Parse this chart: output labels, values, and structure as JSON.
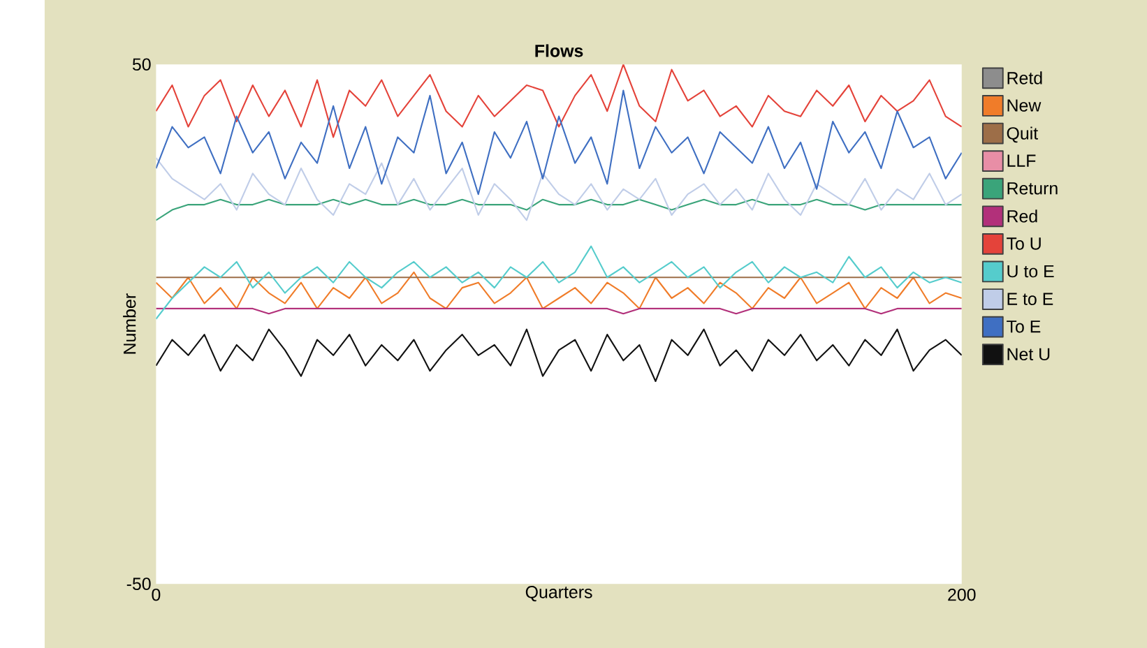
{
  "chart_data": {
    "type": "line",
    "title": "Flows",
    "xlabel": "Quarters",
    "ylabel": "Number",
    "xlim": [
      0,
      200
    ],
    "xticks": [
      0,
      200
    ],
    "ylim": [
      -50,
      50
    ],
    "yticks": [
      -50,
      50
    ],
    "legend": "right",
    "marker": "none",
    "line_style": "solid",
    "x": [
      0,
      4,
      8,
      12,
      16,
      20,
      24,
      28,
      32,
      36,
      40,
      44,
      48,
      52,
      56,
      60,
      64,
      68,
      72,
      76,
      80,
      84,
      88,
      92,
      96,
      100,
      104,
      108,
      112,
      116,
      120,
      124,
      128,
      132,
      136,
      140,
      144,
      148,
      152,
      156,
      160,
      164,
      168,
      172,
      176,
      180,
      184,
      188,
      192,
      196,
      200
    ],
    "series": [
      {
        "name": "Retd",
        "color": "#8d8d8d",
        "values": [
          null,
          null,
          null,
          null,
          null,
          null,
          null,
          null,
          null,
          null,
          null,
          null,
          null,
          null,
          null,
          null,
          null,
          null,
          null,
          null,
          null,
          null,
          null,
          null,
          null,
          null,
          null,
          null,
          null,
          null,
          null,
          null,
          null,
          null,
          null,
          null,
          null,
          null,
          null,
          null,
          null,
          null,
          null,
          null,
          null,
          null,
          null,
          null,
          null,
          null,
          null
        ]
      },
      {
        "name": "New",
        "color": "#f07c29",
        "values": [
          8,
          5,
          9,
          4,
          7,
          3,
          9,
          6,
          4,
          8,
          3,
          7,
          5,
          9,
          4,
          6,
          10,
          5,
          3,
          7,
          8,
          4,
          6,
          9,
          3,
          5,
          7,
          4,
          8,
          6,
          3,
          9,
          5,
          7,
          4,
          8,
          6,
          3,
          7,
          5,
          9,
          4,
          6,
          8,
          3,
          7,
          5,
          9,
          4,
          6,
          5
        ]
      },
      {
        "name": "Quit",
        "color": "#9d6e48",
        "values": [
          9,
          9,
          9,
          9,
          9,
          9,
          9,
          9,
          9,
          9,
          9,
          9,
          9,
          9,
          9,
          9,
          9,
          9,
          9,
          9,
          9,
          9,
          9,
          9,
          9,
          9,
          9,
          9,
          9,
          9,
          9,
          9,
          9,
          9,
          9,
          9,
          9,
          9,
          9,
          9,
          9,
          9,
          9,
          9,
          9,
          9,
          9,
          9,
          9,
          9,
          9
        ]
      },
      {
        "name": "LLF",
        "color": "#e88ea6",
        "values": [
          null,
          null,
          null,
          null,
          null,
          null,
          null,
          null,
          null,
          null,
          null,
          null,
          null,
          null,
          null,
          null,
          null,
          null,
          null,
          null,
          null,
          null,
          null,
          null,
          null,
          null,
          null,
          null,
          null,
          null,
          null,
          null,
          null,
          null,
          null,
          null,
          null,
          null,
          null,
          null,
          null,
          null,
          null,
          null,
          null,
          null,
          null,
          null,
          null,
          null,
          null
        ]
      },
      {
        "name": "Return",
        "color": "#3aa47a",
        "values": [
          20,
          22,
          23,
          23,
          24,
          23,
          23,
          24,
          23,
          23,
          23,
          24,
          23,
          24,
          23,
          23,
          24,
          23,
          23,
          24,
          23,
          23,
          23,
          22,
          24,
          23,
          23,
          24,
          23,
          23,
          24,
          23,
          22,
          23,
          24,
          23,
          23,
          24,
          23,
          23,
          23,
          24,
          23,
          23,
          22,
          23,
          23,
          23,
          23,
          23,
          23
        ]
      },
      {
        "name": "Red",
        "color": "#b2307a",
        "values": [
          3,
          3,
          3,
          3,
          3,
          3,
          3,
          2,
          3,
          3,
          3,
          3,
          3,
          3,
          3,
          3,
          3,
          3,
          3,
          3,
          3,
          3,
          3,
          3,
          3,
          3,
          3,
          3,
          3,
          2,
          3,
          3,
          3,
          3,
          3,
          3,
          2,
          3,
          3,
          3,
          3,
          3,
          3,
          3,
          3,
          2,
          3,
          3,
          3,
          3,
          3
        ]
      },
      {
        "name": "To U",
        "color": "#e4433a",
        "values": [
          41,
          46,
          38,
          44,
          47,
          39,
          46,
          40,
          45,
          38,
          47,
          36,
          45,
          42,
          47,
          40,
          44,
          48,
          41,
          38,
          44,
          40,
          43,
          46,
          45,
          38,
          44,
          48,
          41,
          50,
          42,
          39,
          49,
          43,
          45,
          40,
          42,
          38,
          44,
          41,
          40,
          45,
          42,
          46,
          39,
          44,
          41,
          43,
          47,
          40,
          38
        ]
      },
      {
        "name": "U to E",
        "color": "#55cccc",
        "values": [
          1,
          5,
          8,
          11,
          9,
          12,
          7,
          10,
          6,
          9,
          11,
          8,
          12,
          9,
          7,
          10,
          12,
          9,
          11,
          8,
          10,
          7,
          11,
          9,
          12,
          8,
          10,
          15,
          9,
          11,
          8,
          10,
          12,
          9,
          11,
          7,
          10,
          12,
          8,
          11,
          9,
          10,
          8,
          13,
          9,
          11,
          7,
          10,
          8,
          9,
          8
        ]
      },
      {
        "name": "E to E",
        "color": "#c0cde8",
        "values": [
          32,
          28,
          26,
          24,
          27,
          22,
          29,
          25,
          23,
          30,
          24,
          21,
          27,
          25,
          31,
          23,
          28,
          22,
          26,
          30,
          21,
          27,
          24,
          20,
          29,
          25,
          23,
          27,
          22,
          26,
          24,
          28,
          21,
          25,
          27,
          23,
          26,
          22,
          29,
          24,
          21,
          27,
          25,
          23,
          28,
          22,
          26,
          24,
          29,
          23,
          25
        ]
      },
      {
        "name": "To E",
        "color": "#3f6fc2",
        "values": [
          30,
          38,
          34,
          36,
          29,
          40,
          33,
          37,
          28,
          35,
          31,
          42,
          30,
          38,
          27,
          36,
          33,
          44,
          29,
          35,
          25,
          37,
          32,
          39,
          28,
          40,
          31,
          36,
          27,
          45,
          30,
          38,
          33,
          36,
          29,
          37,
          34,
          31,
          38,
          30,
          35,
          26,
          39,
          33,
          37,
          30,
          41,
          34,
          36,
          28,
          33
        ]
      },
      {
        "name": "Net U",
        "color": "#111111",
        "values": [
          -8,
          -3,
          -6,
          -2,
          -9,
          -4,
          -7,
          -1,
          -5,
          -10,
          -3,
          -6,
          -2,
          -8,
          -4,
          -7,
          -3,
          -9,
          -5,
          -2,
          -6,
          -4,
          -8,
          -1,
          -10,
          -5,
          -3,
          -9,
          -2,
          -7,
          -4,
          -11,
          -3,
          -6,
          -1,
          -8,
          -5,
          -9,
          -3,
          -6,
          -2,
          -7,
          -4,
          -8,
          -3,
          -6,
          -1,
          -9,
          -5,
          -3,
          -6
        ]
      }
    ]
  }
}
